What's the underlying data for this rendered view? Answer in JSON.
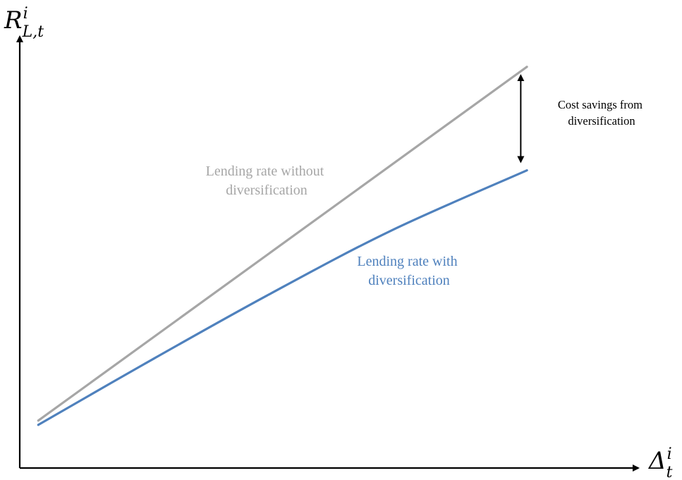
{
  "chart_data": {
    "type": "line",
    "title": "",
    "xlabel": {
      "base": "Δ",
      "sup": "i",
      "sub": "t"
    },
    "ylabel": {
      "base": "R",
      "sup": "i",
      "sub": "L,t"
    },
    "xlim": [
      0,
      1
    ],
    "ylim": [
      0,
      1
    ],
    "grid": false,
    "legend": "none",
    "series": [
      {
        "name": "Lending rate without diversification",
        "label_lines": [
          "Lending rate without",
          "diversification"
        ],
        "color": "#a6a6a6",
        "points": [
          [
            0.03,
            0.11
          ],
          [
            0.82,
            0.93
          ]
        ]
      },
      {
        "name": "Lending rate with diversification",
        "label_lines": [
          "Lending rate with",
          "diversification"
        ],
        "color": "#4f81bd",
        "points": [
          [
            0.03,
            0.1
          ],
          [
            0.2,
            0.24
          ],
          [
            0.4,
            0.4
          ],
          [
            0.6,
            0.55
          ],
          [
            0.82,
            0.69
          ]
        ]
      }
    ],
    "annotation": {
      "text_lines": [
        "Cost savings from",
        "diversification"
      ],
      "x": 0.81,
      "y_top": 0.91,
      "y_bottom": 0.71
    }
  }
}
